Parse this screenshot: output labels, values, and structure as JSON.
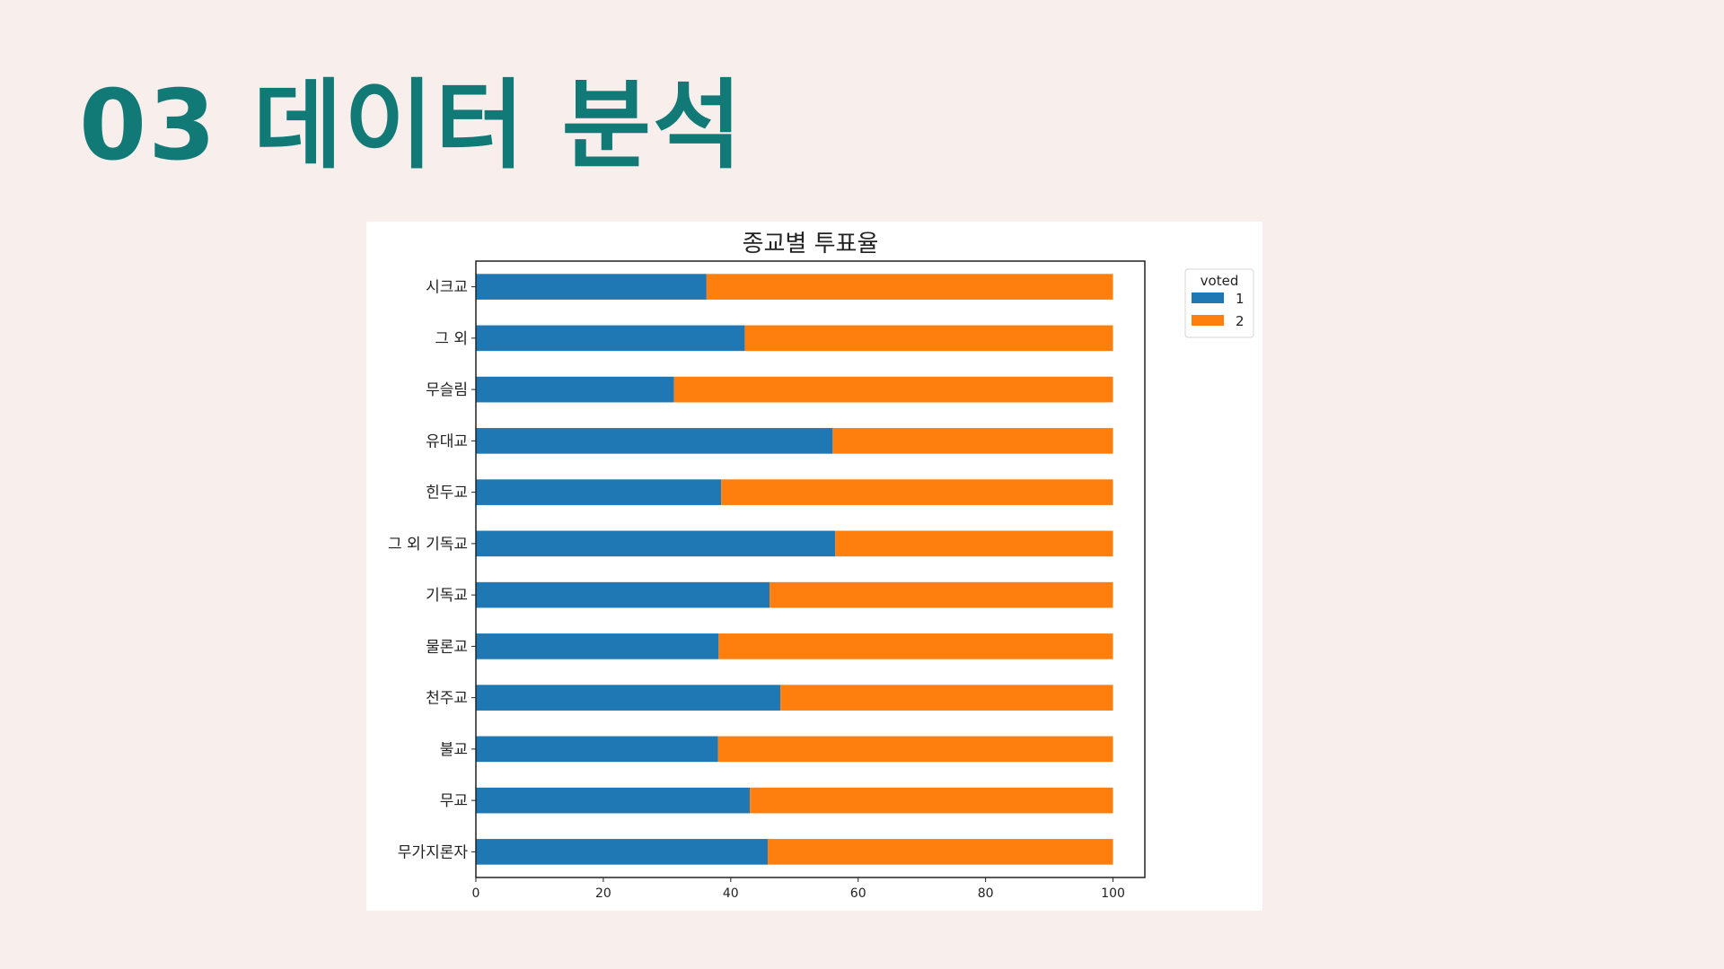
{
  "slide": {
    "title": "03 데이터 분석"
  },
  "chart_data": {
    "type": "bar",
    "orientation": "horizontal",
    "stacked": true,
    "title": "종교별 투표율",
    "categories": [
      "무가지론자",
      "무교",
      "불교",
      "천주교",
      "물론교",
      "기독교",
      "그 외 기독교",
      "힌두교",
      "유대교",
      "무슬림",
      "그 외",
      "시크교"
    ],
    "series": [
      {
        "name": "1",
        "color": "#1f77b4",
        "values": [
          45.8,
          43.0,
          38.0,
          47.8,
          38.1,
          46.1,
          56.4,
          38.5,
          56.0,
          31.1,
          42.2,
          36.2
        ]
      },
      {
        "name": "2",
        "color": "#ff7f0e",
        "values": [
          54.2,
          57.0,
          62.0,
          52.2,
          61.9,
          53.9,
          43.6,
          61.5,
          44.0,
          68.9,
          57.8,
          63.8
        ]
      }
    ],
    "xlabel": "",
    "ylabel": "",
    "xlim": [
      0,
      105
    ],
    "xticks": [
      0,
      20,
      40,
      60,
      80,
      100
    ],
    "grid": false,
    "legend": {
      "title": "voted",
      "placement": "outside-upper-right"
    }
  }
}
